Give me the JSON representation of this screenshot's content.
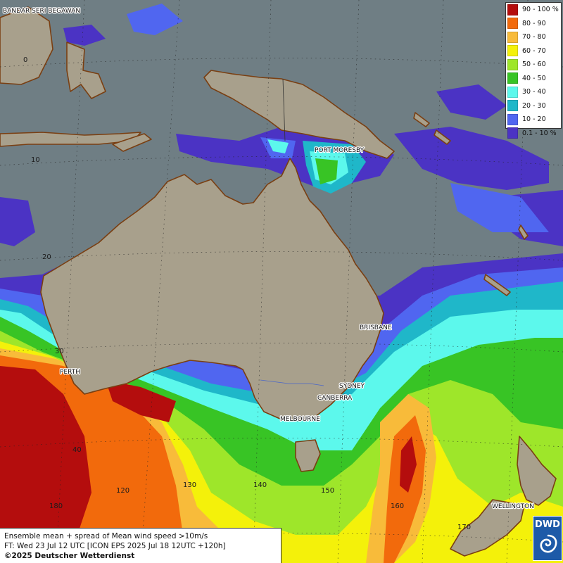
{
  "legend": {
    "items": [
      {
        "label": "90 - 100 %",
        "color": "#b40d0d"
      },
      {
        "label": "80 - 90",
        "color": "#f26a0c"
      },
      {
        "label": "70 - 80",
        "color": "#f8bb3a"
      },
      {
        "label": "60 - 70",
        "color": "#f4f10a"
      },
      {
        "label": "50 - 60",
        "color": "#9ee62a"
      },
      {
        "label": "40 - 50",
        "color": "#38c425"
      },
      {
        "label": "30 - 40",
        "color": "#5cf8ec"
      },
      {
        "label": "20 - 30",
        "color": "#1fb7c9"
      },
      {
        "label": "10 - 20",
        "color": "#5066f0"
      },
      {
        "label": "0.1 - 10 %",
        "color": "#4b33c4"
      }
    ]
  },
  "cities": {
    "bandar": "BANDAR SERI BEGAWAN",
    "port_moresby": "PORT MORESBY",
    "brisbane": "BRISBANE",
    "perth": "PERTH",
    "sydney": "SYDNEY",
    "canberra": "CANBERRA",
    "melbourne": "MELBOURNE",
    "wellington": "WELLINGTON"
  },
  "grid_labels": {
    "lat_0": "0",
    "lat_10": "10",
    "lat_20": "20",
    "lat_30": "30",
    "lat_40": "40",
    "lon_120": "120",
    "lon_130": "130",
    "lon_140": "140",
    "lon_150": "150",
    "lon_160": "160",
    "lon_170": "170",
    "lon_180": "180"
  },
  "info": {
    "line1": "Ensemble mean + spread of Mean wind speed >10m/s",
    "line2": "FT: Wed 23 Jul 12 UTC [ICON EPS 2025 Jul 18 12UTC +120h]",
    "copyright": "©2025 Deutscher Wetterdienst"
  },
  "logo": {
    "text": "DWD"
  },
  "colors": {
    "ocean": "#6f7e84",
    "land": "#a8a08c",
    "coastline": "#7a3f12"
  }
}
